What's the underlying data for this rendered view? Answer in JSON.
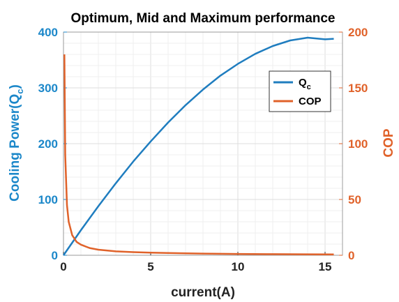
{
  "chart_data": {
    "type": "line",
    "title": "Optimum, Mid and Maximum performance",
    "xlabel": "current(A)",
    "ylabel_left": "Cooling Power(Q",
    "ylabel_left_sub": "c",
    "ylabel_left_close": ")",
    "ylabel_right": "COP",
    "xlim": [
      0,
      16
    ],
    "ylim_left": [
      0,
      400
    ],
    "ylim_right": [
      0,
      200
    ],
    "grid": true,
    "legend_position": "top-right",
    "x_ticks": [
      0,
      5,
      10,
      15
    ],
    "x_tick_labels": [
      "0",
      "5",
      "10",
      "15"
    ],
    "y_left_ticks": [
      0,
      100,
      200,
      300,
      400
    ],
    "y_left_tick_labels": [
      "0",
      "100",
      "200",
      "300",
      "400"
    ],
    "y_right_ticks": [
      0,
      50,
      100,
      150,
      200
    ],
    "y_right_tick_labels": [
      "0",
      "50",
      "100",
      "150",
      "200"
    ],
    "colors": {
      "left_axis": "#1b87c9",
      "right_axis": "#e0622a",
      "qc": "#1f7dbf",
      "cop": "#e0622a"
    },
    "series": [
      {
        "name": "Q",
        "name_sub": "c",
        "axis": "left",
        "x": [
          0,
          1,
          2,
          3,
          4,
          5,
          6,
          7,
          8,
          9,
          10,
          11,
          12,
          13,
          14,
          15,
          15.5
        ],
        "values": [
          0,
          45,
          88,
          129,
          168,
          204,
          238,
          269,
          297,
          322,
          343,
          361,
          375,
          385,
          390,
          387,
          388
        ]
      },
      {
        "name": "COP",
        "axis": "right",
        "x": [
          0.05,
          0.1,
          0.2,
          0.3,
          0.5,
          0.75,
          1,
          1.5,
          2,
          3,
          4,
          5,
          6,
          8,
          10,
          12,
          14,
          15.5
        ],
        "values": [
          180,
          90,
          45,
          30,
          18,
          12,
          9.5,
          6.5,
          5,
          3.5,
          2.8,
          2.3,
          2,
          1.5,
          1.2,
          1,
          0.9,
          0.8
        ]
      }
    ]
  }
}
